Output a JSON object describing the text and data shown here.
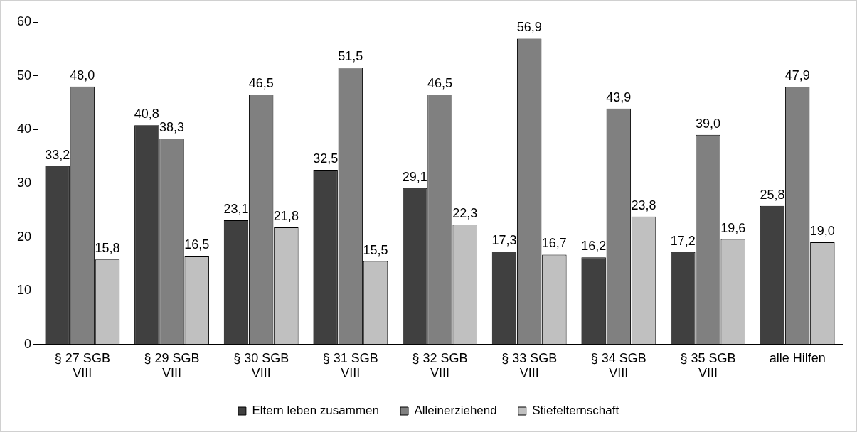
{
  "chart_data": {
    "type": "bar",
    "categories": [
      "§ 27 SGB VIII",
      "§ 29 SGB VIII",
      "§ 30 SGB VIII",
      "§ 31 SGB VIII",
      "§ 32 SGB VIII",
      "§ 33 SGB VIII",
      "§ 34 SGB VIII",
      "§ 35 SGB VIII",
      "alle Hilfen"
    ],
    "series": [
      {
        "name": "Eltern leben zusammen",
        "color": "#404040",
        "values": [
          33.2,
          40.8,
          23.1,
          32.5,
          29.1,
          17.3,
          16.2,
          17.2,
          25.8
        ],
        "value_labels": [
          "33,2",
          "40,8",
          "23,1",
          "32,5",
          "29,1",
          "17,3",
          "16,2",
          "17,2",
          "25,8"
        ]
      },
      {
        "name": "Alleinerziehend",
        "color": "#808080",
        "values": [
          48.0,
          38.3,
          46.5,
          51.5,
          46.5,
          56.9,
          43.9,
          39.0,
          47.9
        ],
        "value_labels": [
          "48,0",
          "38,3",
          "46,5",
          "51,5",
          "46,5",
          "56,9",
          "43,9",
          "39,0",
          "47,9"
        ]
      },
      {
        "name": "Stiefelternschaft",
        "color": "#c0c0c0",
        "values": [
          15.8,
          16.5,
          21.8,
          15.5,
          22.3,
          16.7,
          23.8,
          19.6,
          19.0
        ],
        "value_labels": [
          "15,8",
          "16,5",
          "21,8",
          "15,5",
          "22,3",
          "16,7",
          "23,8",
          "19,6",
          "19,0"
        ]
      }
    ],
    "ylim": [
      0,
      60
    ],
    "yticks": [
      0,
      10,
      20,
      30,
      40,
      50,
      60
    ],
    "grid": false,
    "legend": "bottom"
  }
}
